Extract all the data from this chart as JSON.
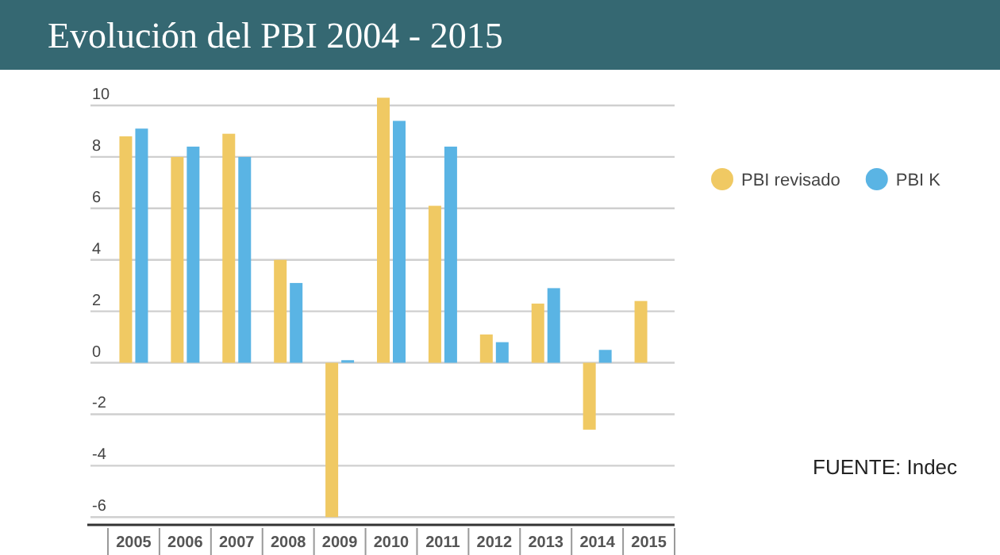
{
  "chart_data": {
    "type": "bar",
    "title": "Evolución del PBI 2004 - 2015",
    "categories": [
      "2005",
      "2006",
      "2007",
      "2008",
      "2009",
      "2010",
      "2011",
      "2012",
      "2013",
      "2014",
      "2015"
    ],
    "series": [
      {
        "name": "PBI revisado",
        "color": "#f0c963",
        "values": [
          8.8,
          8.0,
          8.9,
          4.0,
          -6.0,
          10.3,
          6.1,
          1.1,
          2.3,
          -2.6,
          2.4
        ]
      },
      {
        "name": "PBI K",
        "color": "#5ab4e4",
        "values": [
          9.1,
          8.4,
          8.0,
          3.1,
          0.1,
          9.4,
          8.4,
          0.8,
          2.9,
          0.5,
          null
        ]
      }
    ],
    "ylim": [
      -6.3,
      10.4
    ],
    "yticks": [
      -6,
      -4,
      -2,
      0,
      2,
      4,
      6,
      8,
      10
    ],
    "grid": "y",
    "legend": "right",
    "annotations": [
      "FUENTE: Indec"
    ]
  }
}
